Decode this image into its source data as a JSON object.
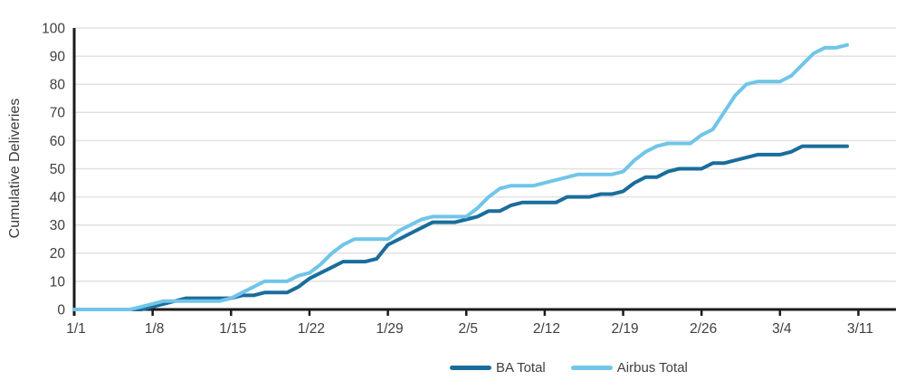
{
  "chart_data": {
    "type": "line",
    "title": "",
    "xlabel": "",
    "ylabel": "Cumulative Deliveries",
    "ylim": [
      0,
      100
    ],
    "y_ticks": [
      0,
      10,
      20,
      30,
      40,
      50,
      60,
      70,
      80,
      90,
      100
    ],
    "x_tick_labels": [
      "1/1",
      "1/8",
      "1/15",
      "1/22",
      "1/29",
      "2/5",
      "2/12",
      "2/19",
      "2/26",
      "3/4",
      "3/11"
    ],
    "grid": "horizontal",
    "legend_position": "bottom-center",
    "x": [
      "1/1",
      "1/2",
      "1/3",
      "1/4",
      "1/5",
      "1/6",
      "1/7",
      "1/8",
      "1/9",
      "1/10",
      "1/11",
      "1/12",
      "1/13",
      "1/14",
      "1/15",
      "1/16",
      "1/17",
      "1/18",
      "1/19",
      "1/20",
      "1/21",
      "1/22",
      "1/23",
      "1/24",
      "1/25",
      "1/26",
      "1/27",
      "1/28",
      "1/29",
      "1/30",
      "1/31",
      "2/1",
      "2/2",
      "2/3",
      "2/4",
      "2/5",
      "2/6",
      "2/7",
      "2/8",
      "2/9",
      "2/10",
      "2/11",
      "2/12",
      "2/13",
      "2/14",
      "2/15",
      "2/16",
      "2/17",
      "2/18",
      "2/19",
      "2/20",
      "2/21",
      "2/22",
      "2/23",
      "2/24",
      "2/25",
      "2/26",
      "2/27",
      "2/28",
      "2/29",
      "3/1",
      "3/2",
      "3/3",
      "3/4",
      "3/5",
      "3/6",
      "3/7",
      "3/8",
      "3/9",
      "3/10"
    ],
    "series": [
      {
        "name": "BA Total",
        "color": "#1a6d9b",
        "values": [
          0,
          0,
          0,
          0,
          0,
          0,
          0,
          1,
          2,
          3,
          4,
          4,
          4,
          4,
          4,
          5,
          5,
          6,
          6,
          6,
          8,
          11,
          13,
          15,
          17,
          17,
          17,
          18,
          23,
          25,
          27,
          29,
          31,
          31,
          31,
          32,
          33,
          35,
          35,
          37,
          38,
          38,
          38,
          38,
          40,
          40,
          40,
          41,
          41,
          42,
          45,
          47,
          47,
          49,
          50,
          50,
          50,
          52,
          52,
          53,
          54,
          55,
          55,
          55,
          56,
          58,
          58,
          58,
          58,
          58
        ]
      },
      {
        "name": "Airbus Total",
        "color": "#70c5e8",
        "values": [
          0,
          0,
          0,
          0,
          0,
          0,
          1,
          2,
          3,
          3,
          3,
          3,
          3,
          3,
          4,
          6,
          8,
          10,
          10,
          10,
          12,
          13,
          16,
          20,
          23,
          25,
          25,
          25,
          25,
          28,
          30,
          32,
          33,
          33,
          33,
          33,
          36,
          40,
          43,
          44,
          44,
          44,
          45,
          46,
          47,
          48,
          48,
          48,
          48,
          49,
          53,
          56,
          58,
          59,
          59,
          59,
          62,
          64,
          70,
          76,
          80,
          81,
          81,
          81,
          83,
          87,
          91,
          93,
          93,
          94
        ]
      }
    ]
  },
  "style_colors": {
    "axis": "#1a1a1a",
    "gridline": "#e1e1e1",
    "tick_text": "#3f3f3f",
    "axis_title_text": "#3a3a3a"
  },
  "legend": {
    "items": [
      {
        "label": "BA Total"
      },
      {
        "label": "Airbus Total"
      }
    ]
  }
}
